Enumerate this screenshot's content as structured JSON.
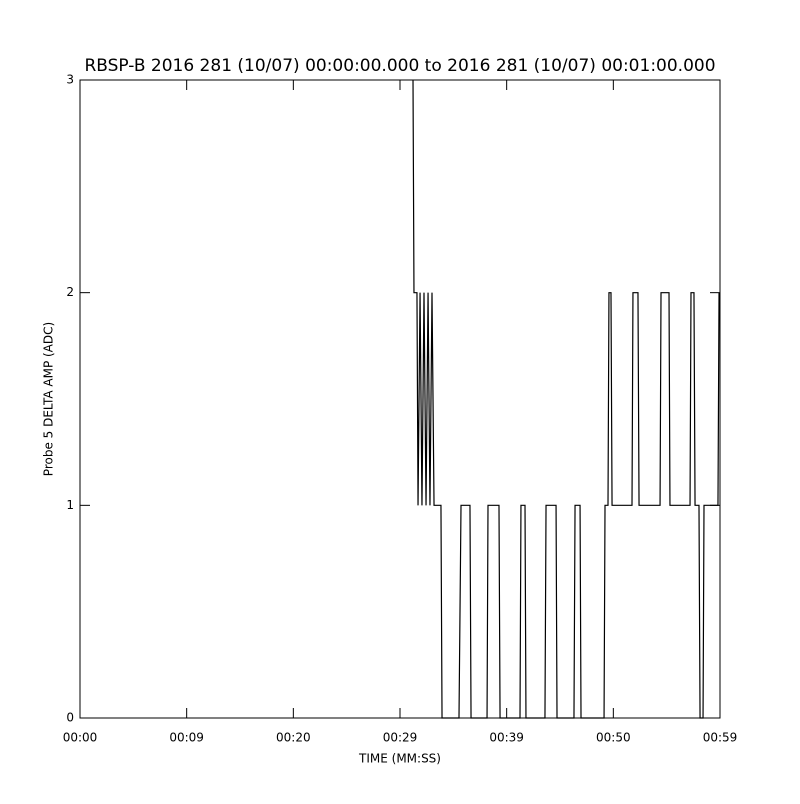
{
  "chart_data": {
    "type": "line",
    "title": "RBSP-B 2016 281 (10/07) 00:00:00.000 to 2016 281 (10/07) 00:01:00.000",
    "x_label": "TIME (MM:SS)",
    "y_label": "Probe 5 DELTA AMP (ADC)",
    "x": [
      31.22,
      31.31,
      31.59,
      31.69,
      31.88,
      32.06,
      32.25,
      32.44,
      32.63,
      32.81,
      33.0,
      33.19,
      33.84,
      33.94,
      35.53,
      35.72,
      36.56,
      36.66,
      38.16,
      38.25,
      39.28,
      39.38,
      41.25,
      41.34,
      41.72,
      41.81,
      43.59,
      43.69,
      44.63,
      44.72,
      46.31,
      46.41,
      46.88,
      46.97,
      49.13,
      49.22,
      49.5,
      49.59,
      49.78,
      49.88,
      51.75,
      51.84,
      52.31,
      52.41,
      54.38,
      54.47,
      55.22,
      55.31,
      57.19,
      57.28,
      57.56,
      57.66,
      58.03,
      58.13,
      58.41,
      58.5,
      59.81,
      59.91
    ],
    "series": [
      {
        "color": "#000000",
        "values": [
          3,
          2,
          2,
          1,
          2,
          1,
          2,
          1,
          2,
          1,
          2,
          1,
          1,
          0,
          0,
          1,
          1,
          0,
          0,
          1,
          1,
          0,
          0,
          1,
          1,
          0,
          0,
          1,
          1,
          0,
          0,
          1,
          1,
          0,
          0,
          1,
          1,
          2,
          2,
          1,
          1,
          2,
          2,
          1,
          1,
          2,
          2,
          1,
          1,
          2,
          2,
          1,
          1,
          0,
          0,
          1,
          1,
          2
        ]
      }
    ],
    "xlim": [
      0,
      60
    ],
    "xticks": [
      {
        "value": 0,
        "label": "00:00"
      },
      {
        "value": 10,
        "label": "00:09"
      },
      {
        "value": 20,
        "label": "00:20"
      },
      {
        "value": 30,
        "label": "00:29"
      },
      {
        "value": 40,
        "label": "00:39"
      },
      {
        "value": 50,
        "label": "00:50"
      },
      {
        "value": 60,
        "label": "00:59"
      }
    ],
    "ylim": [
      0,
      3
    ],
    "yticks": [
      0,
      1,
      2,
      3
    ]
  }
}
